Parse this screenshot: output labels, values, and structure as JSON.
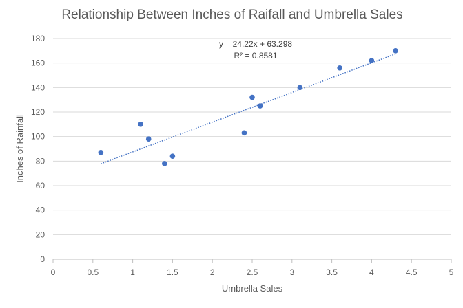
{
  "chart_data": {
    "type": "scatter",
    "title": "Relationship Between Inches of Raifall and Umbrella Sales",
    "xlabel": "Umbrella Sales",
    "ylabel": "Inches of Rainfall",
    "xlim": [
      0,
      5
    ],
    "ylim": [
      0,
      180
    ],
    "xticks": [
      "0",
      "0.5",
      "1",
      "1.5",
      "2",
      "2.5",
      "3",
      "3.5",
      "4",
      "4.5",
      "5"
    ],
    "yticks": [
      "0",
      "20",
      "40",
      "60",
      "80",
      "100",
      "120",
      "140",
      "160",
      "180"
    ],
    "grid": "horizontal",
    "legend": "none",
    "series": [
      {
        "points": [
          {
            "x": 0.6,
            "y": 87
          },
          {
            "x": 1.1,
            "y": 110
          },
          {
            "x": 1.2,
            "y": 98
          },
          {
            "x": 1.4,
            "y": 78
          },
          {
            "x": 1.5,
            "y": 84
          },
          {
            "x": 2.4,
            "y": 103
          },
          {
            "x": 2.5,
            "y": 132
          },
          {
            "x": 2.6,
            "y": 125
          },
          {
            "x": 3.1,
            "y": 140
          },
          {
            "x": 3.6,
            "y": 156
          },
          {
            "x": 4.0,
            "y": 162
          },
          {
            "x": 4.3,
            "y": 170
          }
        ],
        "color": "#4472c4"
      }
    ],
    "trendline": {
      "type": "linear",
      "style": "dotted",
      "slope": 24.22,
      "intercept": 63.298,
      "x_range": [
        0.6,
        4.3
      ],
      "equation": "y = 24.22x + 63.298",
      "r_squared": "R² = 0.8581",
      "color": "#4472c4"
    },
    "colors": {
      "gridline": "#d9d9d9",
      "axis_line": "#bfbfbf",
      "text": "#595959"
    }
  }
}
